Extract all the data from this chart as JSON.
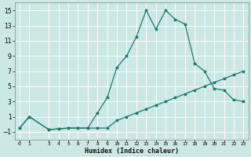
{
  "xlabel": "Humidex (Indice chaleur)",
  "x_ticks": [
    0,
    1,
    3,
    4,
    5,
    6,
    7,
    8,
    9,
    10,
    11,
    12,
    13,
    14,
    15,
    16,
    17,
    18,
    19,
    20,
    21,
    22,
    23
  ],
  "line1_x": [
    0,
    1,
    3,
    4,
    5,
    6,
    7,
    8,
    9,
    10,
    11,
    12,
    13,
    14,
    15,
    16,
    17,
    18,
    19,
    20,
    21,
    22,
    23
  ],
  "line1_y": [
    -0.5,
    1.0,
    -0.7,
    -0.6,
    -0.5,
    -0.5,
    -0.5,
    -0.5,
    -0.5,
    0.5,
    1.0,
    1.5,
    2.0,
    2.5,
    3.0,
    3.5,
    4.0,
    4.5,
    5.0,
    5.5,
    6.0,
    6.5,
    7.0
  ],
  "line2_x": [
    0,
    1,
    3,
    4,
    5,
    6,
    7,
    8,
    9,
    10,
    11,
    12,
    13,
    14,
    15,
    16,
    17,
    18,
    19,
    20,
    21,
    22,
    23
  ],
  "line2_y": [
    -0.5,
    1.0,
    -0.7,
    -0.6,
    -0.5,
    -0.5,
    -0.5,
    1.5,
    3.5,
    7.5,
    9.0,
    11.5,
    15.0,
    12.5,
    15.0,
    13.8,
    13.2,
    8.0,
    7.0,
    4.7,
    4.5,
    3.2,
    3.0
  ],
  "bg_color": "#cce8e5",
  "line_color": "#1a7a6e",
  "grid_color": "#ffffff",
  "ylim": [
    -2,
    16
  ],
  "yticks": [
    -1,
    1,
    3,
    5,
    7,
    9,
    11,
    13,
    15
  ]
}
